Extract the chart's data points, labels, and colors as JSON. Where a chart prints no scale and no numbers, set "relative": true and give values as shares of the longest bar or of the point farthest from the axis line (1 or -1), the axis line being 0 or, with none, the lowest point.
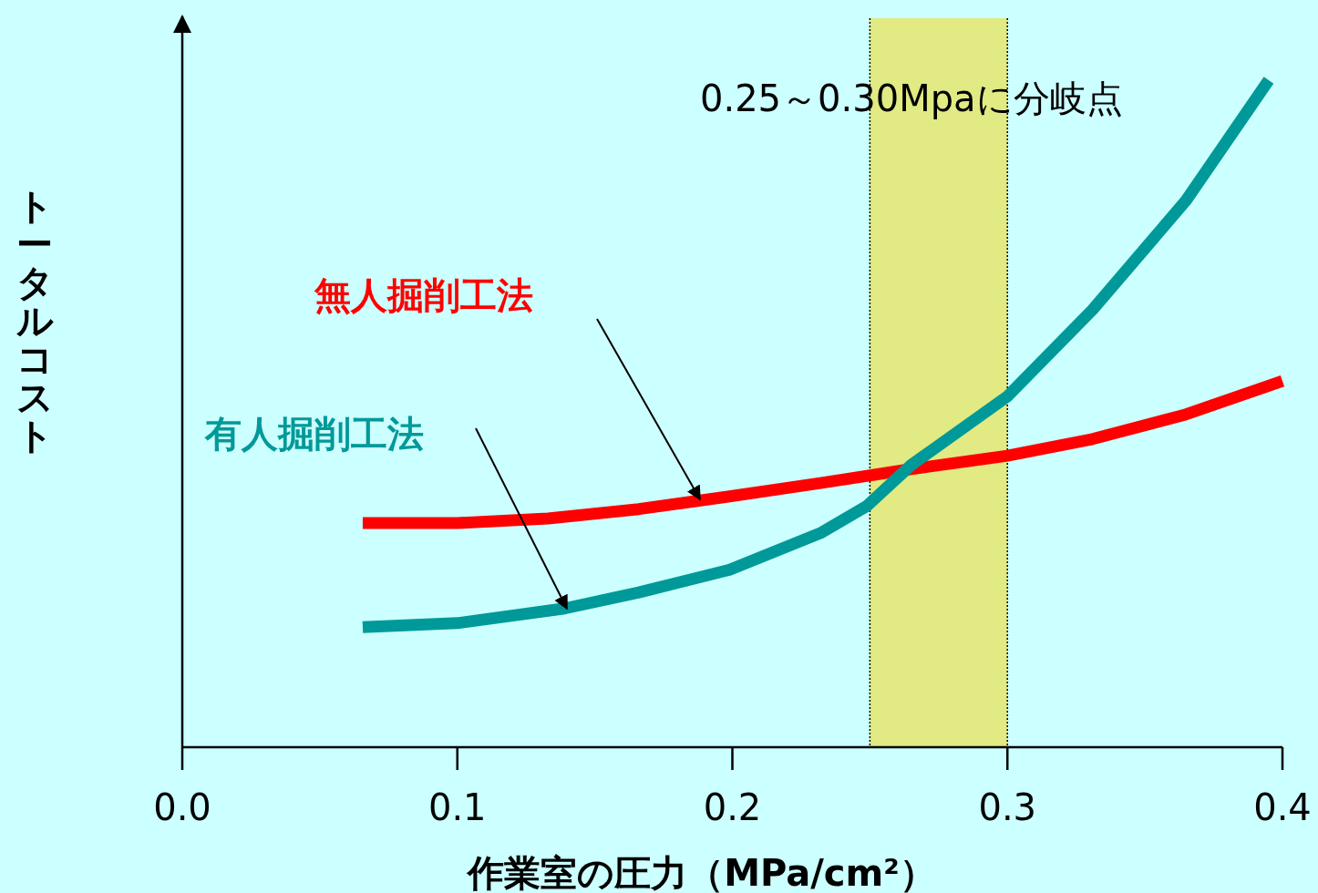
{
  "chart_data": {
    "type": "line",
    "relative": true,
    "xlabel": "作業室の圧力（MPa/cm²）",
    "ylabel": "トータルコスト",
    "xlim": [
      0,
      0.4
    ],
    "xticks": [
      {
        "value": 0,
        "label": "0.0"
      },
      {
        "value": 0.1,
        "label": "0.1"
      },
      {
        "value": 0.2,
        "label": "0.2"
      },
      {
        "value": 0.3,
        "label": "0.3"
      },
      {
        "value": 0.4,
        "label": "0.4"
      }
    ],
    "series": [
      {
        "name": "無人掘削工法",
        "color": "#ff0000",
        "x": [
          0.0656,
          0.1,
          0.133,
          0.166,
          0.199,
          0.232,
          0.265,
          0.3,
          0.331,
          0.365,
          0.4
        ],
        "values": [
          0.336,
          0.336,
          0.343,
          0.357,
          0.376,
          0.396,
          0.417,
          0.437,
          0.462,
          0.499,
          0.549
        ]
      },
      {
        "name": "有人掘削工法",
        "color": "#009999",
        "x": [
          0.0656,
          0.1,
          0.139,
          0.166,
          0.199,
          0.232,
          0.249,
          0.265,
          0.3,
          0.331,
          0.365,
          0.395
        ],
        "values": [
          0.18,
          0.186,
          0.208,
          0.232,
          0.266,
          0.321,
          0.362,
          0.423,
          0.526,
          0.656,
          0.82,
          1
        ]
      }
    ],
    "bands": [
      {
        "axis": "x",
        "from": 0.25,
        "to": 0.3,
        "color": "#e8e35a",
        "label": "0.25～0.30Mpaに分岐点"
      }
    ]
  }
}
